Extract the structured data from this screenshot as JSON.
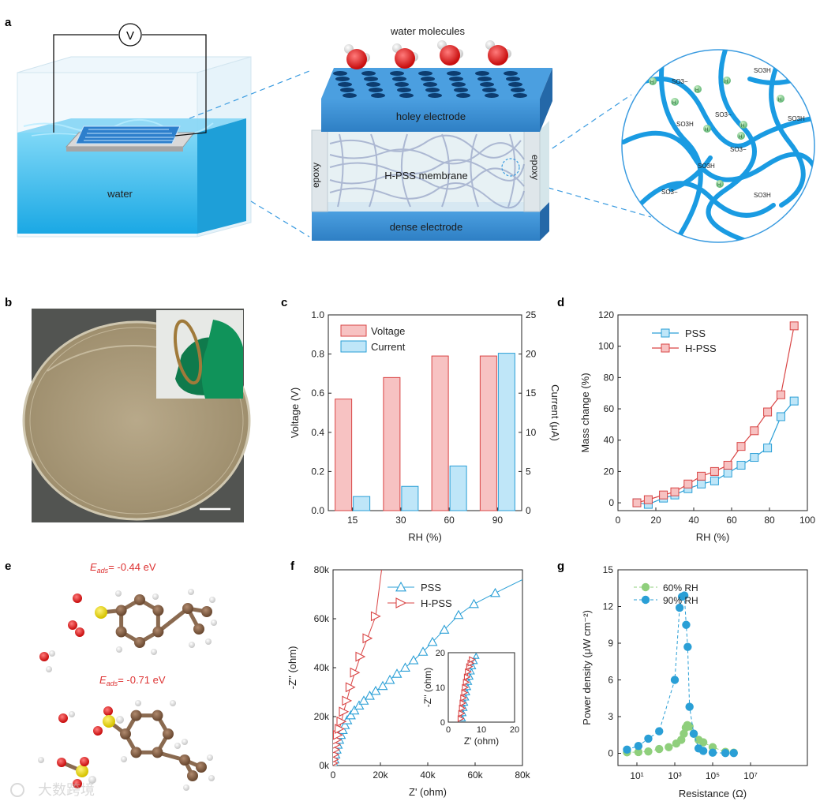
{
  "panel_labels": {
    "a": "a",
    "b": "b",
    "c": "c",
    "d": "d",
    "e": "e",
    "f": "f",
    "g": "g"
  },
  "schematic": {
    "voltmeter": "V",
    "water_label": "water",
    "water_molecules": "water molecules",
    "holey_electrode": "holey electrode",
    "membrane": "H-PSS membrane",
    "dense_electrode": "dense electrode",
    "epoxy": "epoxy",
    "groups": {
      "so3h": "SO3H",
      "so3minus": "SO3−",
      "hplus": "H+"
    }
  },
  "molecule": {
    "eads_symbol": "E",
    "eads_sub": "ads",
    "eads_top": "= -0.44 eV",
    "eads_bottom": "= -0.71 eV"
  },
  "colors": {
    "red": "#d94545",
    "redfill": "#f7c2c2",
    "blue": "#2a9fd6",
    "bluefill": "#bfe6f8",
    "green": "#8fcf7c",
    "water": "#29b8ea",
    "electrode": "#3b8fd4"
  },
  "watermark": "大数跨境",
  "chart_data": [
    {
      "id": "c",
      "type": "bar",
      "categories": [
        "15",
        "30",
        "60",
        "90"
      ],
      "xlabel": "RH (%)",
      "ylabel": "Voltage (V)",
      "y2label": "Current (μA)",
      "ylim": [
        0,
        1.0
      ],
      "y2lim": [
        0,
        25
      ],
      "yticks": [
        "0.0",
        "0.2",
        "0.4",
        "0.6",
        "0.8",
        "1.0"
      ],
      "y2ticks": [
        "0",
        "5",
        "10",
        "15",
        "20",
        "25"
      ],
      "legend_position": "top-left",
      "series": [
        {
          "name": "Voltage",
          "axis": "left",
          "values": [
            0.57,
            0.68,
            0.79,
            0.79
          ]
        },
        {
          "name": "Current",
          "axis": "right",
          "values": [
            1.8,
            3.1,
            5.7,
            20.1
          ]
        }
      ]
    },
    {
      "id": "d",
      "type": "line",
      "xlabel": "RH (%)",
      "ylabel": "Mass change (%)",
      "xlim": [
        0,
        100
      ],
      "ylim": [
        -5,
        120
      ],
      "xticks": [
        "0",
        "20",
        "40",
        "60",
        "80",
        "100"
      ],
      "yticks": [
        "0",
        "20",
        "40",
        "60",
        "80",
        "100",
        "120"
      ],
      "legend_position": "top-left",
      "series": [
        {
          "name": "PSS",
          "x": [
            10,
            16,
            24,
            30,
            37,
            44,
            51,
            58,
            65,
            72,
            79,
            86,
            93
          ],
          "y": [
            0,
            -1,
            3,
            5,
            9,
            12,
            14,
            19,
            24,
            29,
            35,
            55,
            65
          ]
        },
        {
          "name": "H-PSS",
          "x": [
            10,
            16,
            24,
            30,
            37,
            44,
            51,
            58,
            65,
            72,
            79,
            86,
            93
          ],
          "y": [
            0,
            2,
            5,
            7,
            12,
            17,
            20,
            24,
            36,
            46,
            58,
            69,
            113
          ]
        }
      ]
    },
    {
      "id": "f",
      "type": "line",
      "xlabel": "Z' (ohm)",
      "ylabel": "-Z'' (ohm)",
      "xlim": [
        0,
        80
      ],
      "ylim": [
        0,
        80
      ],
      "xticks": [
        "0",
        "20k",
        "40k",
        "60k",
        "80k"
      ],
      "yticks": [
        "0k",
        "20k",
        "40k",
        "60k",
        "80k"
      ],
      "legend_position": "top-center",
      "series": [
        {
          "name": "PSS",
          "x": [
            0.3,
            0.6,
            1,
            1.5,
            2,
            2.6,
            3.3,
            4.1,
            5,
            6,
            7.5,
            9,
            11,
            13,
            15.5,
            18,
            21,
            24,
            27,
            30.5,
            34,
            38,
            42,
            47,
            53,
            59.5,
            68.5
          ],
          "y": [
            1,
            2.5,
            4.5,
            6.5,
            8.5,
            10.5,
            12.5,
            14.5,
            16.5,
            18.5,
            20.5,
            22.5,
            24.5,
            26.5,
            28.5,
            30.5,
            32.5,
            35,
            37.5,
            40,
            43,
            46.5,
            50.5,
            55.5,
            61.5,
            66,
            70.5
          ]
        },
        {
          "name": "H-PSS",
          "x": [
            0.1,
            0.3,
            0.5,
            0.8,
            1.1,
            1.5,
            2,
            2.7,
            3.5,
            4.5,
            5.8,
            7.3,
            9.2,
            11.5,
            14.5,
            18
          ],
          "y": [
            1,
            2.5,
            4.5,
            6.5,
            8.5,
            10.5,
            12.5,
            15,
            18,
            22,
            26.5,
            32,
            38,
            44.5,
            52,
            61
          ]
        }
      ]
    },
    {
      "id": "f_inset",
      "type": "line",
      "xlabel": "Z' (ohm)",
      "ylabel": "-Z'' (ohm)",
      "xlim": [
        0,
        20
      ],
      "ylim": [
        0,
        20
      ],
      "xticks": [
        "0",
        "10",
        "20"
      ],
      "yticks": [
        "0",
        "10",
        "20"
      ],
      "series": [
        {
          "name": "PSS",
          "x": [
            4.3,
            4.5,
            4.8,
            5,
            5.3,
            5.6,
            5.9,
            6.2,
            6.6,
            7,
            7.4,
            7.9,
            8.4
          ],
          "y": [
            1,
            2.5,
            4,
            5.5,
            7,
            8.5,
            10,
            11.5,
            13,
            14.5,
            16,
            17.5,
            19
          ]
        },
        {
          "name": "H-PSS",
          "x": [
            3.8,
            4,
            4.2,
            4.4,
            4.6,
            4.9,
            5.1,
            5.4,
            5.7,
            6,
            6.4,
            6.8,
            7.2
          ],
          "y": [
            1,
            2.5,
            4,
            5.5,
            7,
            8.5,
            10,
            11.5,
            13,
            14.5,
            16,
            17,
            18
          ]
        }
      ]
    },
    {
      "id": "g",
      "type": "line",
      "xlabel": "Resistance (Ω)",
      "ylabel": "Power density (μW cm⁻²)",
      "xscale": "log",
      "xlim": [
        1,
        10000000000
      ],
      "ylim": [
        -1,
        15
      ],
      "xticks": [
        "10¹",
        "10³",
        "10⁵",
        "10⁷"
      ],
      "yticks": [
        "0",
        "3",
        "6",
        "9",
        "12",
        "15"
      ],
      "legend_position": "top-left",
      "series": [
        {
          "name": "60% RH",
          "x": [
            3,
            12,
            40,
            150,
            480,
            1200,
            2200,
            3000,
            3800,
            4600,
            6000,
            10000,
            18000,
            32000,
            100000,
            470000,
            1300000
          ],
          "y": [
            0.08,
            0.1,
            0.15,
            0.35,
            0.5,
            0.8,
            1.1,
            1.6,
            2.1,
            2.3,
            2.2,
            1.6,
            1.1,
            0.9,
            0.5,
            0.12,
            0.05
          ]
        },
        {
          "name": "90% RH",
          "x": [
            3,
            12,
            40,
            150,
            1000,
            1800,
            2400,
            3200,
            4000,
            4800,
            6000,
            10000,
            18000,
            32000,
            100000,
            470000,
            1300000
          ],
          "y": [
            0.3,
            0.6,
            1.2,
            1.8,
            6.0,
            11.9,
            12.8,
            12.9,
            10.5,
            8.7,
            3.8,
            1.6,
            0.4,
            0.2,
            0.05,
            0.02,
            0.02
          ]
        }
      ]
    }
  ]
}
